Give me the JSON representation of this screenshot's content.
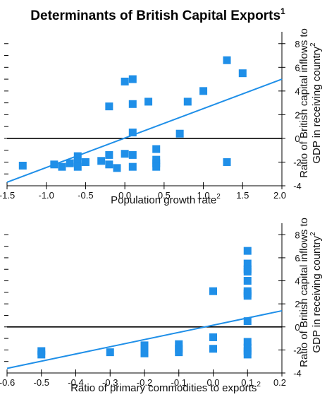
{
  "title": "Determinants of British Capital Exports",
  "title_footnote": "1",
  "colors": {
    "marker": "#1f8fe8",
    "trend": "#1f8fe8",
    "zero_line": "#000000",
    "axis": "#000000"
  },
  "chart_data": [
    {
      "type": "scatter",
      "title": "",
      "xlabel": "Population growth rate",
      "xlabel_footnote": "2",
      "ylabel_line1": "Ratio of British capital inflows to",
      "ylabel_line2": "GDP in receiving country",
      "ylabel_footnote": "2",
      "xlim": [
        -1.5,
        2.0
      ],
      "ylim": [
        -4,
        9
      ],
      "x_ticks": [
        -1.5,
        -1.0,
        -0.5,
        0.0,
        0.5,
        1.0,
        1.5,
        2.0
      ],
      "x_tick_labels": [
        "-1.5",
        "-1.0",
        "-0.5",
        "0.0",
        "0.5",
        "1.0",
        "1.5",
        "2.0"
      ],
      "y_ticks": [
        -4,
        -2,
        0,
        2,
        4,
        6,
        8
      ],
      "y_tick_labels_right": [
        "-4",
        "-2",
        "0",
        "2",
        "4",
        "6",
        "8"
      ],
      "y_minor_ticks_left": [
        -3,
        -2,
        -1,
        0,
        1,
        2,
        3,
        4,
        5,
        6,
        7,
        8
      ],
      "zero_line": 0,
      "trend_line": {
        "x": [
          -1.5,
          2.0
        ],
        "y": [
          -3.7,
          5.0
        ]
      },
      "points": [
        {
          "x": -1.3,
          "y": -2.3
        },
        {
          "x": -0.9,
          "y": -2.2
        },
        {
          "x": -0.8,
          "y": -2.4
        },
        {
          "x": -0.7,
          "y": -2.1
        },
        {
          "x": -0.6,
          "y": -1.5
        },
        {
          "x": -0.6,
          "y": -2.0
        },
        {
          "x": -0.6,
          "y": -2.4
        },
        {
          "x": -0.5,
          "y": -2.0
        },
        {
          "x": -0.3,
          "y": -1.9
        },
        {
          "x": -0.2,
          "y": -1.4
        },
        {
          "x": -0.2,
          "y": -2.2
        },
        {
          "x": -0.1,
          "y": -2.5
        },
        {
          "x": 0.0,
          "y": -1.3
        },
        {
          "x": 0.1,
          "y": -1.4
        },
        {
          "x": 0.1,
          "y": -2.4
        },
        {
          "x": 0.4,
          "y": -0.9
        },
        {
          "x": 0.4,
          "y": -1.8
        },
        {
          "x": 0.4,
          "y": -2.1
        },
        {
          "x": 0.4,
          "y": -2.4
        },
        {
          "x": -0.2,
          "y": 2.7
        },
        {
          "x": 0.0,
          "y": 4.8
        },
        {
          "x": 0.1,
          "y": 5.0
        },
        {
          "x": 0.1,
          "y": 2.9
        },
        {
          "x": 0.1,
          "y": 0.5
        },
        {
          "x": 0.3,
          "y": 3.1
        },
        {
          "x": 0.7,
          "y": 0.4
        },
        {
          "x": 0.8,
          "y": 3.1
        },
        {
          "x": 1.0,
          "y": 4.0
        },
        {
          "x": 1.3,
          "y": 6.6
        },
        {
          "x": 1.5,
          "y": 5.5
        },
        {
          "x": 1.3,
          "y": -2.0
        }
      ]
    },
    {
      "type": "scatter",
      "title": "",
      "xlabel": "Ratio of primary commodities to exports",
      "xlabel_footnote": "2",
      "ylabel_line1": "Ratio of British capital inflows to",
      "ylabel_line2": "GDP in receiving country",
      "ylabel_footnote": "2",
      "xlim": [
        -0.6,
        0.2
      ],
      "ylim": [
        -4,
        9
      ],
      "x_ticks": [
        -0.6,
        -0.5,
        -0.4,
        -0.3,
        -0.2,
        -0.1,
        0.0,
        0.1,
        0.2
      ],
      "x_tick_labels": [
        "-0.6",
        "-0.5",
        "-0.4",
        "-0.3",
        "-0.2",
        "-0.1",
        "0.0",
        "0.1",
        "0.2"
      ],
      "y_ticks": [
        -4,
        -2,
        0,
        2,
        4,
        6,
        8
      ],
      "y_tick_labels_right": [
        "-4",
        "-2",
        "0",
        "2",
        "4",
        "6",
        "8"
      ],
      "y_minor_ticks_left": [
        -3,
        -2,
        -1,
        0,
        1,
        2,
        3,
        4,
        5,
        6,
        7,
        8
      ],
      "zero_line": 0,
      "trend_line": {
        "x": [
          -0.6,
          0.2
        ],
        "y": [
          -3.6,
          1.4
        ]
      },
      "points": [
        {
          "x": -0.5,
          "y": -2.1
        },
        {
          "x": -0.5,
          "y": -2.4
        },
        {
          "x": -0.3,
          "y": -2.2
        },
        {
          "x": -0.2,
          "y": -1.6
        },
        {
          "x": -0.2,
          "y": -2.0
        },
        {
          "x": -0.2,
          "y": -2.3
        },
        {
          "x": -0.1,
          "y": -1.5
        },
        {
          "x": -0.1,
          "y": -1.9
        },
        {
          "x": -0.1,
          "y": -2.2
        },
        {
          "x": 0.0,
          "y": -0.9
        },
        {
          "x": 0.0,
          "y": -1.9
        },
        {
          "x": 0.0,
          "y": 3.1
        },
        {
          "x": 0.1,
          "y": 6.6
        },
        {
          "x": 0.1,
          "y": 5.5
        },
        {
          "x": 0.1,
          "y": 5.0
        },
        {
          "x": 0.1,
          "y": 4.8
        },
        {
          "x": 0.1,
          "y": 4.0
        },
        {
          "x": 0.1,
          "y": 3.1
        },
        {
          "x": 0.1,
          "y": 2.9
        },
        {
          "x": 0.1,
          "y": 2.7
        },
        {
          "x": 0.1,
          "y": 0.5
        },
        {
          "x": 0.1,
          "y": -1.3
        },
        {
          "x": 0.1,
          "y": -1.8
        },
        {
          "x": 0.1,
          "y": -2.1
        },
        {
          "x": 0.1,
          "y": -2.4
        }
      ]
    }
  ]
}
